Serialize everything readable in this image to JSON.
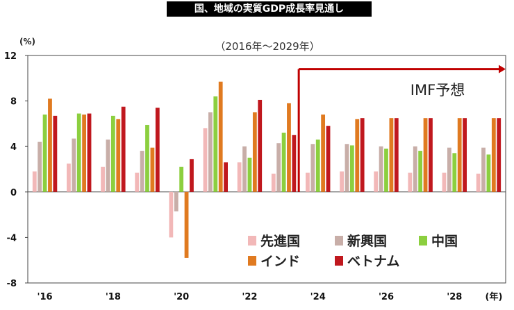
{
  "title": "国、地域の実質GDP成長率見通し",
  "chart_data": {
    "type": "bar",
    "title": "国、地域の実質GDP成長率見通し",
    "subtitle": "（2016年～2029年）",
    "ylabel": "(%)",
    "xunit": "(年)",
    "ylim": [
      -8,
      12
    ],
    "yticks": [
      "12",
      "8",
      "4",
      "0",
      "-4",
      "-8"
    ],
    "xtick_labels": [
      "'16",
      "'18",
      "'20",
      "'22",
      "'24",
      "'26",
      "'28"
    ],
    "categories": [
      "2016",
      "2017",
      "2018",
      "2019",
      "2020",
      "2021",
      "2022",
      "2023",
      "2024",
      "2025",
      "2026",
      "2027",
      "2028",
      "2029"
    ],
    "series": [
      {
        "name": "先進国",
        "color": "#f2b8b8",
        "values": [
          1.8,
          2.5,
          2.2,
          1.7,
          -4.0,
          5.6,
          2.6,
          1.6,
          1.7,
          1.8,
          1.8,
          1.7,
          1.7,
          1.6
        ]
      },
      {
        "name": "新興国",
        "color": "#c8aea8",
        "values": [
          4.4,
          4.7,
          4.6,
          3.6,
          -1.7,
          7.0,
          4.0,
          4.3,
          4.2,
          4.2,
          4.0,
          4.0,
          3.9,
          3.9
        ]
      },
      {
        "name": "中国",
        "color": "#8ccf3f",
        "values": [
          6.8,
          6.9,
          6.7,
          5.9,
          2.2,
          8.4,
          3.0,
          5.2,
          4.6,
          4.1,
          3.8,
          3.6,
          3.4,
          3.3
        ]
      },
      {
        "name": "インド",
        "color": "#e07a20",
        "values": [
          8.2,
          6.8,
          6.4,
          3.9,
          -5.8,
          9.7,
          7.0,
          7.8,
          6.8,
          6.4,
          6.5,
          6.5,
          6.5,
          6.5
        ]
      },
      {
        "name": "ベトナム",
        "color": "#c0181e",
        "values": [
          6.7,
          6.9,
          7.5,
          7.4,
          2.9,
          2.6,
          8.1,
          5.0,
          5.8,
          6.5,
          6.5,
          6.5,
          6.5,
          6.5
        ]
      }
    ],
    "annotation": "IMF予想",
    "annotation_start": "2024",
    "grid": false,
    "legend_position": "bottom-right"
  }
}
